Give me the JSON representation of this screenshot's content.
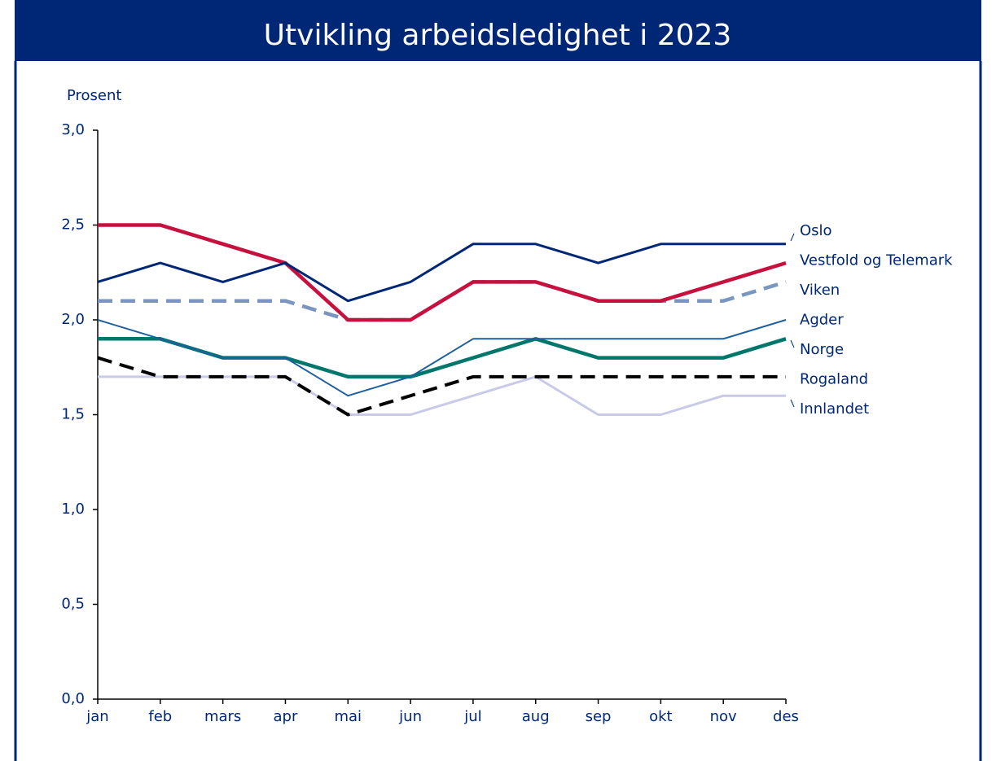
{
  "chart_data": {
    "type": "line",
    "title": "Utvikling arbeidsledighet i 2023",
    "y_label": "Prosent",
    "categories": [
      "jan",
      "feb",
      "mars",
      "apr",
      "mai",
      "jun",
      "jul",
      "aug",
      "sep",
      "okt",
      "nov",
      "des"
    ],
    "ylim": [
      0,
      3
    ],
    "yticks": [
      {
        "value": 0,
        "label": "0,0"
      },
      {
        "value": 0.5,
        "label": "0,5"
      },
      {
        "value": 1,
        "label": "1,0"
      },
      {
        "value": 1.5,
        "label": "1,5"
      },
      {
        "value": 2,
        "label": "2,0"
      },
      {
        "value": 2.5,
        "label": "2,5"
      },
      {
        "value": 3,
        "label": "3,0"
      }
    ],
    "grid": false,
    "series": [
      {
        "name": "Oslo",
        "color": "#002776",
        "dashed": false,
        "values": [
          2.2,
          2.3,
          2.2,
          2.3,
          2.1,
          2.2,
          2.4,
          2.4,
          2.3,
          2.4,
          2.4,
          2.4
        ]
      },
      {
        "name": "Vestfold og Telemark",
        "color": "#c8103e",
        "dashed": false,
        "values": [
          2.5,
          2.5,
          2.4,
          2.3,
          2.0,
          2.0,
          2.2,
          2.2,
          2.1,
          2.1,
          2.2,
          2.3
        ]
      },
      {
        "name": "Viken",
        "color": "#7a96c0",
        "dashed": true,
        "values": [
          2.1,
          2.1,
          2.1,
          2.1,
          2.0,
          2.0,
          2.2,
          2.2,
          2.1,
          2.1,
          2.1,
          2.2
        ]
      },
      {
        "name": "Agder",
        "color": "#1f5f9e",
        "dashed": false,
        "values": [
          2.0,
          1.9,
          1.8,
          1.8,
          1.6,
          1.7,
          1.9,
          1.9,
          1.9,
          1.9,
          1.9,
          2.0
        ]
      },
      {
        "name": "Norge",
        "color": "#00776b",
        "dashed": false,
        "values": [
          1.9,
          1.9,
          1.8,
          1.8,
          1.7,
          1.7,
          1.8,
          1.9,
          1.8,
          1.8,
          1.8,
          1.9
        ]
      },
      {
        "name": "Rogaland",
        "color": "#000000",
        "dashed": true,
        "values": [
          1.8,
          1.7,
          1.7,
          1.7,
          1.5,
          1.6,
          1.7,
          1.7,
          1.7,
          1.7,
          1.7,
          1.7
        ]
      },
      {
        "name": "Innlandet",
        "color": "#c9c9e8",
        "dashed": false,
        "values": [
          1.7,
          1.7,
          1.7,
          1.7,
          1.5,
          1.5,
          1.6,
          1.7,
          1.5,
          1.5,
          1.6,
          1.6
        ]
      }
    ]
  }
}
